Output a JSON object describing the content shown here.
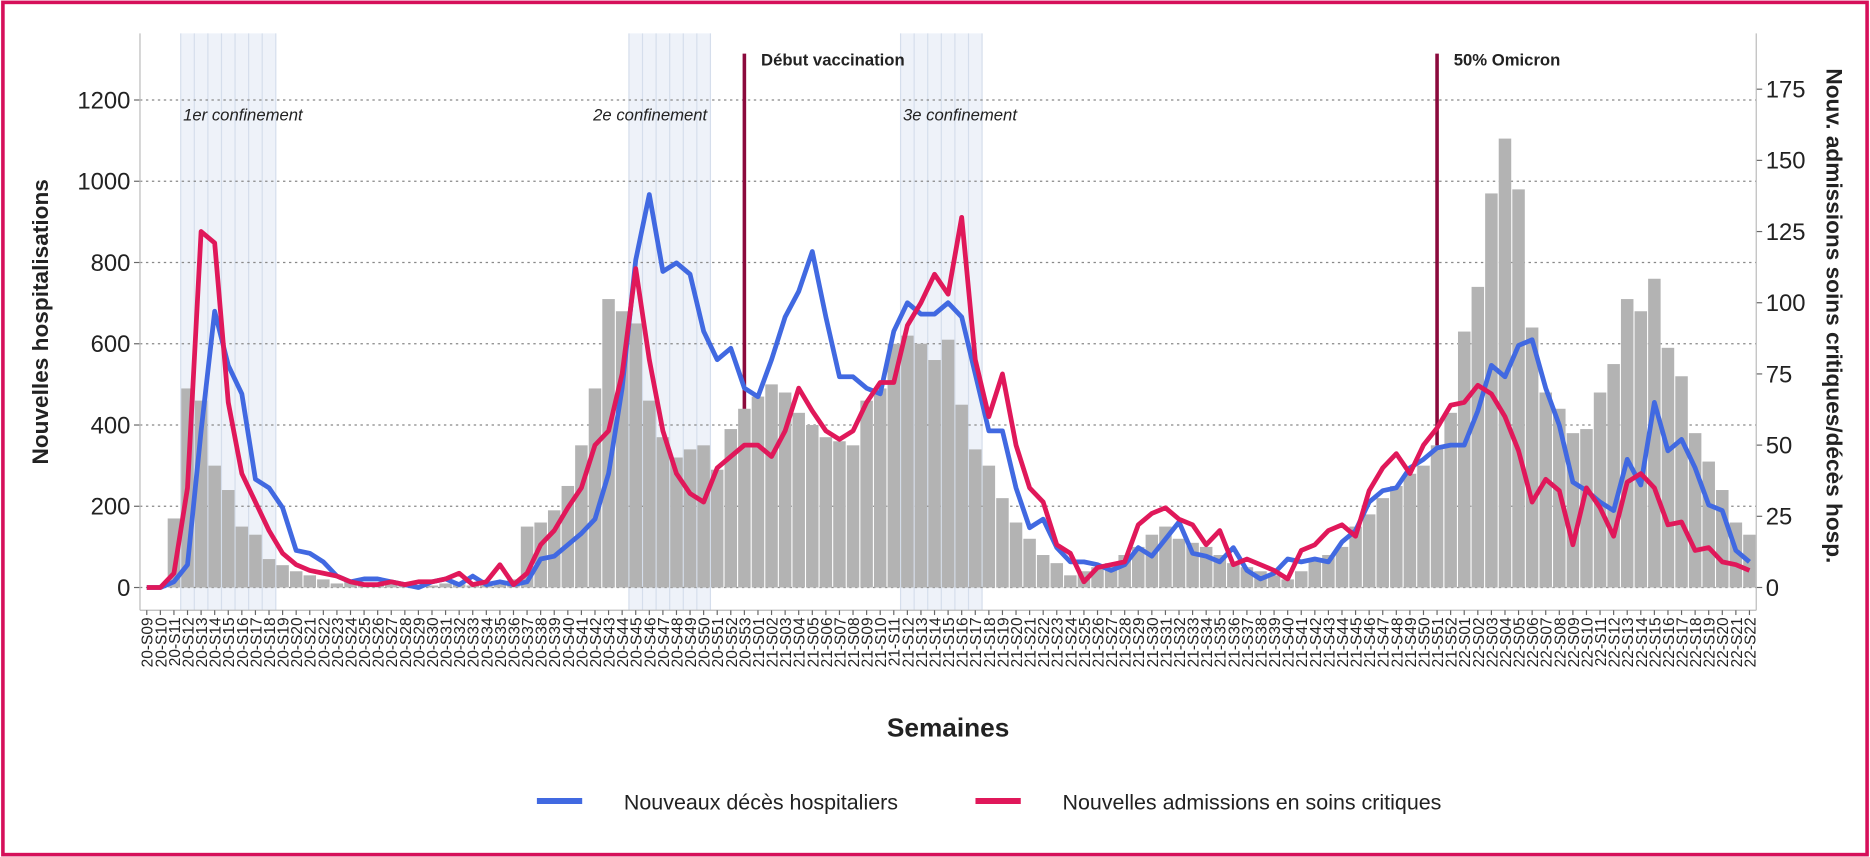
{
  "chart_data": {
    "type": "bar",
    "x_label": "Semaines",
    "y_label": "Nouvelles hospitalisations",
    "y2_label": "Nouv. admissions soins critiques/décès hosp.",
    "categories": [
      "20-S09",
      "20-S10",
      "20-S11",
      "20-S12",
      "20-S13",
      "20-S14",
      "20-S15",
      "20-S16",
      "20-S17",
      "20-S18",
      "20-S19",
      "20-S20",
      "20-S21",
      "20-S22",
      "20-S23",
      "20-S24",
      "20-S25",
      "20-S26",
      "20-S27",
      "20-S28",
      "20-S29",
      "20-S30",
      "20-S31",
      "20-S32",
      "20-S33",
      "20-S34",
      "20-S35",
      "20-S36",
      "20-S37",
      "20-S38",
      "20-S39",
      "20-S40",
      "20-S41",
      "20-S42",
      "20-S43",
      "20-S44",
      "20-S45",
      "20-S46",
      "20-S47",
      "20-S48",
      "20-S49",
      "20-S50",
      "20-S51",
      "20-S52",
      "20-S53",
      "21-S01",
      "21-S02",
      "21-S03",
      "21-S04",
      "21-S05",
      "21-S06",
      "21-S07",
      "21-S08",
      "21-S09",
      "21-S10",
      "21-S11",
      "21-S12",
      "21-S13",
      "21-S14",
      "21-S15",
      "21-S16",
      "21-S17",
      "21-S18",
      "21-S19",
      "21-S20",
      "21-S21",
      "21-S22",
      "21-S23",
      "21-S24",
      "21-S25",
      "21-S26",
      "21-S27",
      "21-S28",
      "21-S29",
      "21-S30",
      "21-S31",
      "21-S32",
      "21-S33",
      "21-S34",
      "21-S35",
      "21-S36",
      "21-S37",
      "21-S38",
      "21-S39",
      "21-S40",
      "21-S41",
      "21-S42",
      "21-S43",
      "21-S44",
      "21-S45",
      "21-S46",
      "21-S47",
      "21-S48",
      "21-S49",
      "21-S50",
      "21-S51",
      "21-S52",
      "22-S01",
      "22-S02",
      "22-S03",
      "22-S04",
      "22-S05",
      "22-S06",
      "22-S07",
      "22-S08",
      "22-S09",
      "22-S10",
      "22-S11",
      "22-S12",
      "22-S13",
      "22-S14",
      "22-S15",
      "22-S16",
      "22-S17",
      "22-S18",
      "22-S19",
      "22-S20",
      "22-S21",
      "22-S22"
    ],
    "series": [
      {
        "type": "bar",
        "color": "#b3b3b3",
        "values": [
          0,
          5,
          170,
          490,
          460,
          300,
          240,
          150,
          130,
          70,
          55,
          40,
          30,
          20,
          10,
          15,
          10,
          10,
          8,
          5,
          5,
          5,
          10,
          8,
          5,
          10,
          8,
          20,
          150,
          160,
          190,
          250,
          350,
          490,
          710,
          680,
          650,
          460,
          370,
          320,
          340,
          350,
          290,
          390,
          440,
          470,
          500,
          480,
          430,
          400,
          370,
          360,
          350,
          460,
          490,
          600,
          620,
          600,
          560,
          610,
          450,
          340,
          300,
          220,
          160,
          120,
          80,
          60,
          30,
          40,
          50,
          60,
          80,
          100,
          130,
          150,
          120,
          110,
          100,
          80,
          60,
          50,
          40,
          30,
          20,
          40,
          70,
          80,
          100,
          150,
          180,
          220,
          250,
          280,
          300,
          350,
          430,
          630,
          740,
          970,
          1105,
          980,
          640,
          480,
          440,
          380,
          390,
          480,
          550,
          710,
          680,
          760,
          590,
          520,
          380,
          310,
          240,
          160,
          130
        ]
      },
      {
        "name": "Nouveaux décès hospitaliers",
        "type": "line",
        "axis": "y2",
        "color": "#4169e1",
        "values": [
          0,
          0,
          2,
          8,
          55,
          97,
          78,
          68,
          38,
          35,
          28,
          13,
          12,
          9,
          4,
          2,
          3,
          3,
          2,
          1,
          0,
          2,
          3,
          1,
          4,
          1,
          2,
          1,
          2,
          10,
          11,
          15,
          19,
          24,
          40,
          70,
          115,
          138,
          111,
          114,
          110,
          90,
          80,
          84,
          70,
          67,
          80,
          95,
          104,
          118,
          95,
          74,
          74,
          70,
          68,
          90,
          100,
          96,
          96,
          100,
          95,
          75,
          55,
          55,
          35,
          21,
          24,
          14,
          9,
          9,
          8,
          6,
          8,
          14,
          11,
          17,
          23,
          12,
          11,
          9,
          14,
          6,
          3,
          5,
          10,
          9,
          10,
          9,
          16,
          20,
          30,
          34,
          35,
          42,
          45,
          49,
          50,
          50,
          62,
          78,
          74,
          85,
          87,
          70,
          57,
          37,
          34,
          30,
          27,
          45,
          36,
          65,
          48,
          52,
          42,
          29,
          27,
          13,
          9
        ]
      },
      {
        "name": "Nouvelles admissions en soins critiques",
        "type": "line",
        "axis": "y2",
        "color": "#e0185a",
        "values": [
          0,
          0,
          5,
          35,
          125,
          121,
          65,
          40,
          30,
          20,
          12,
          8,
          6,
          5,
          4,
          2,
          1,
          1,
          2,
          1,
          2,
          2,
          3,
          5,
          1,
          2,
          8,
          1,
          5,
          15,
          20,
          28,
          35,
          50,
          55,
          75,
          112,
          80,
          55,
          40,
          33,
          30,
          42,
          46,
          50,
          50,
          46,
          55,
          70,
          62,
          55,
          52,
          55,
          65,
          72,
          72,
          92,
          100,
          110,
          103,
          130,
          80,
          60,
          75,
          50,
          35,
          30,
          15,
          12,
          2,
          7,
          8,
          9,
          22,
          26,
          28,
          24,
          22,
          15,
          20,
          8,
          10,
          8,
          6,
          3,
          13,
          15,
          20,
          22,
          18,
          34,
          42,
          47,
          40,
          50,
          56,
          64,
          65,
          71,
          68,
          60,
          48,
          30,
          38,
          34,
          15,
          35,
          28,
          18,
          37,
          40,
          35,
          22,
          23,
          13,
          14,
          9,
          8,
          6
        ]
      }
    ],
    "ylim": [
      -56,
      1364
    ],
    "yticks": [
      0,
      200,
      400,
      600,
      800,
      1000,
      1200
    ],
    "y2lim": [
      -8,
      194.6
    ],
    "y2ticks": [
      0,
      25,
      50,
      75,
      100,
      125,
      150,
      175
    ],
    "grid": true,
    "legend": "bottom",
    "periods": [
      {
        "label": "1er confinement",
        "start": "20-S12",
        "end": "20-S18"
      },
      {
        "label": "2e confinement",
        "start": "20-S45",
        "end": "20-S50"
      },
      {
        "label": "3e confinement",
        "start": "21-S12",
        "end": "21-S17"
      }
    ],
    "events": [
      {
        "label": "Début vaccination",
        "x": "20-S53",
        "color": "#8b0a3c"
      },
      {
        "label": "50% Omicron",
        "x": "21-S51",
        "color": "#8b0a3c"
      }
    ]
  }
}
